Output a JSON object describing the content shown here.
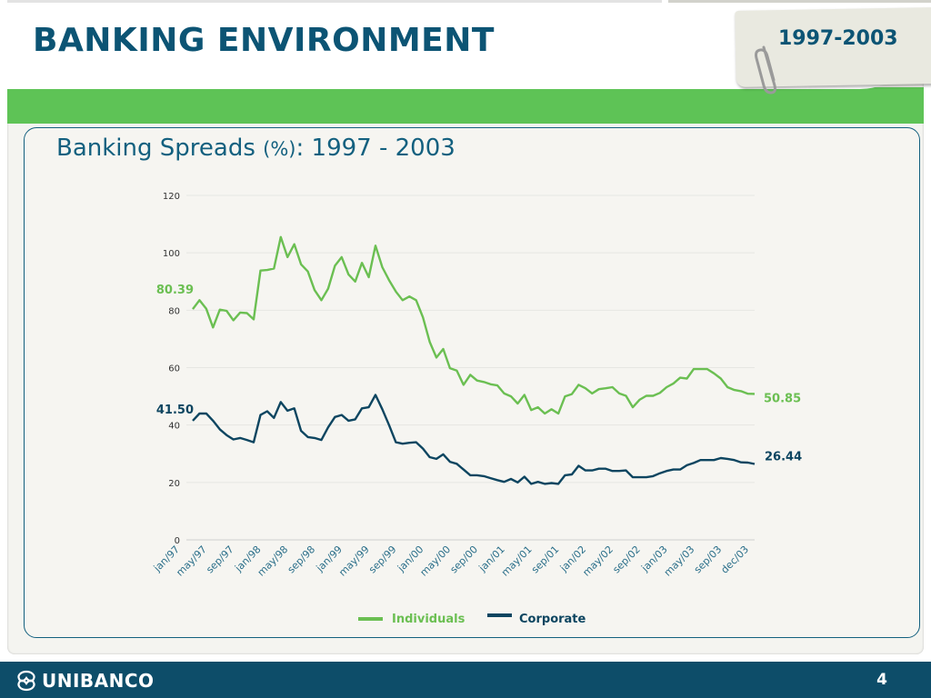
{
  "header": {
    "title": "BANKING ENVIRONMENT",
    "year_range": "1997-2003"
  },
  "footer": {
    "logo_text": "UNIBANCO",
    "page_number": "4"
  },
  "colors": {
    "brand_dark": "#0c5474",
    "brand_green": "#5ec356",
    "individuals_line": "#6bbf52",
    "corporate_line": "#0d4560"
  },
  "chart_data": {
    "type": "line",
    "title": "Banking Spreads",
    "title_unit": "(%)",
    "title_suffix": ": 1997 - 2003",
    "ylim": [
      0,
      120
    ],
    "y_ticks": [
      0,
      20,
      40,
      60,
      80,
      100,
      120
    ],
    "x_tick_labels": [
      "jan/97",
      "may/97",
      "sep/97",
      "jan/98",
      "may/98",
      "sep/98",
      "jan/99",
      "may/99",
      "sep/99",
      "jan/00",
      "may/00",
      "sep/00",
      "jan/01",
      "may/01",
      "sep/01",
      "jan/02",
      "may/02",
      "sep/02",
      "jan/03",
      "may/03",
      "sep/03",
      "dec/03"
    ],
    "grid": true,
    "legend_position": "bottom",
    "series": [
      {
        "name": "Individuals",
        "start_label": "80.39",
        "end_label": "50.85",
        "values": [
          80.4,
          83.5,
          80.5,
          74.0,
          80.2,
          79.8,
          76.5,
          79.2,
          79.0,
          76.8,
          93.8,
          94.0,
          94.5,
          105.5,
          98.5,
          103.0,
          96.0,
          93.5,
          87.0,
          83.5,
          87.5,
          95.5,
          98.5,
          92.5,
          90.0,
          96.5,
          91.5,
          102.5,
          95.0,
          90.5,
          86.5,
          83.5,
          84.8,
          83.5,
          77.5,
          69.0,
          63.5,
          66.5,
          59.8,
          59.0,
          54.0,
          57.5,
          55.5,
          55.0,
          54.2,
          53.8,
          51.0,
          50.0,
          47.5,
          50.5,
          45.2,
          46.2,
          44.0,
          45.5,
          44.0,
          50.0,
          50.8,
          54.0,
          52.8,
          51.0,
          52.5,
          52.8,
          53.2,
          51.0,
          50.2,
          46.2,
          48.8,
          50.2,
          50.2,
          51.2,
          53.2,
          54.5,
          56.5,
          56.2,
          59.5,
          59.5,
          59.5,
          58.0,
          56.2,
          53.2,
          52.2,
          51.8,
          50.9,
          50.85
        ]
      },
      {
        "name": "Corporate",
        "start_label": "41.50",
        "end_label": "26.44",
        "values": [
          41.5,
          44.0,
          44.0,
          41.5,
          38.5,
          36.5,
          35.0,
          35.5,
          34.8,
          34.0,
          43.5,
          44.8,
          42.5,
          48.0,
          45.0,
          45.8,
          38.0,
          35.8,
          35.5,
          34.8,
          39.2,
          42.8,
          43.5,
          41.5,
          42.0,
          45.8,
          46.2,
          50.5,
          45.5,
          40.0,
          34.0,
          33.5,
          33.8,
          34.0,
          31.8,
          28.8,
          28.2,
          29.8,
          27.2,
          26.5,
          24.5,
          22.5,
          22.5,
          22.2,
          21.5,
          20.8,
          20.2,
          21.2,
          20.0,
          22.0,
          19.5,
          20.2,
          19.5,
          19.8,
          19.5,
          22.5,
          22.8,
          25.8,
          24.2,
          24.2,
          24.8,
          24.8,
          24.0,
          24.0,
          24.2,
          21.8,
          21.8,
          21.8,
          22.2,
          23.2,
          24.0,
          24.5,
          24.5,
          26.0,
          26.8,
          27.8,
          27.8,
          27.8,
          28.5,
          28.2,
          27.8,
          27.0,
          26.9,
          26.44
        ]
      }
    ]
  }
}
